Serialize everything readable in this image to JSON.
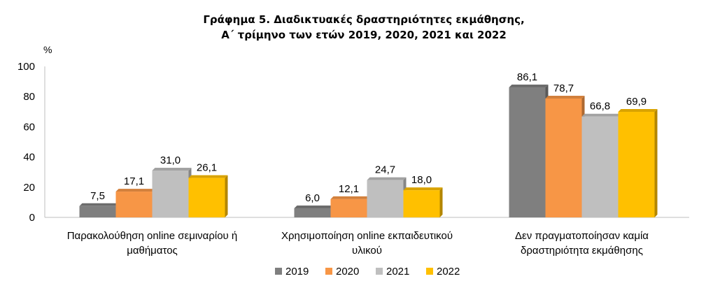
{
  "chart_data": {
    "type": "bar",
    "title_lines": [
      "Γράφημα 5. Διαδικτυακές δραστηριότητες εκμάθησης,",
      "Α΄ τρίμηνο των ετών 2019, 2020, 2021 και 2022"
    ],
    "ylabel": "%",
    "ylim": [
      0,
      100
    ],
    "yticks": [
      0,
      20,
      40,
      60,
      80,
      100
    ],
    "categories": [
      [
        "Παρακολούθηση online σεμιναρίου ή",
        "μαθήματος"
      ],
      [
        "Χρησιμοποίηση online εκπαιδευτικού",
        "υλικού"
      ],
      [
        "Δεν πραγματοποίησαν καμία",
        "δραστηριότητα εκμάθησης"
      ]
    ],
    "series": [
      {
        "name": "2019",
        "color": "#7f7f7f",
        "values": [
          7.5,
          6.0,
          86.1
        ],
        "labels": [
          "7,5",
          "6,0",
          "86,1"
        ]
      },
      {
        "name": "2020",
        "color": "#f79646",
        "values": [
          17.1,
          12.1,
          78.7
        ],
        "labels": [
          "17,1",
          "12,1",
          "78,7"
        ]
      },
      {
        "name": "2021",
        "color": "#bfbfbf",
        "values": [
          31.0,
          24.7,
          66.8
        ],
        "labels": [
          "31,0",
          "24,7",
          "66,8"
        ]
      },
      {
        "name": "2022",
        "color": "#ffc000",
        "values": [
          26.1,
          18.0,
          69.9
        ],
        "labels": [
          "26,1",
          "18,0",
          "69,9"
        ]
      }
    ],
    "grid": false,
    "legend_position": "bottom"
  }
}
